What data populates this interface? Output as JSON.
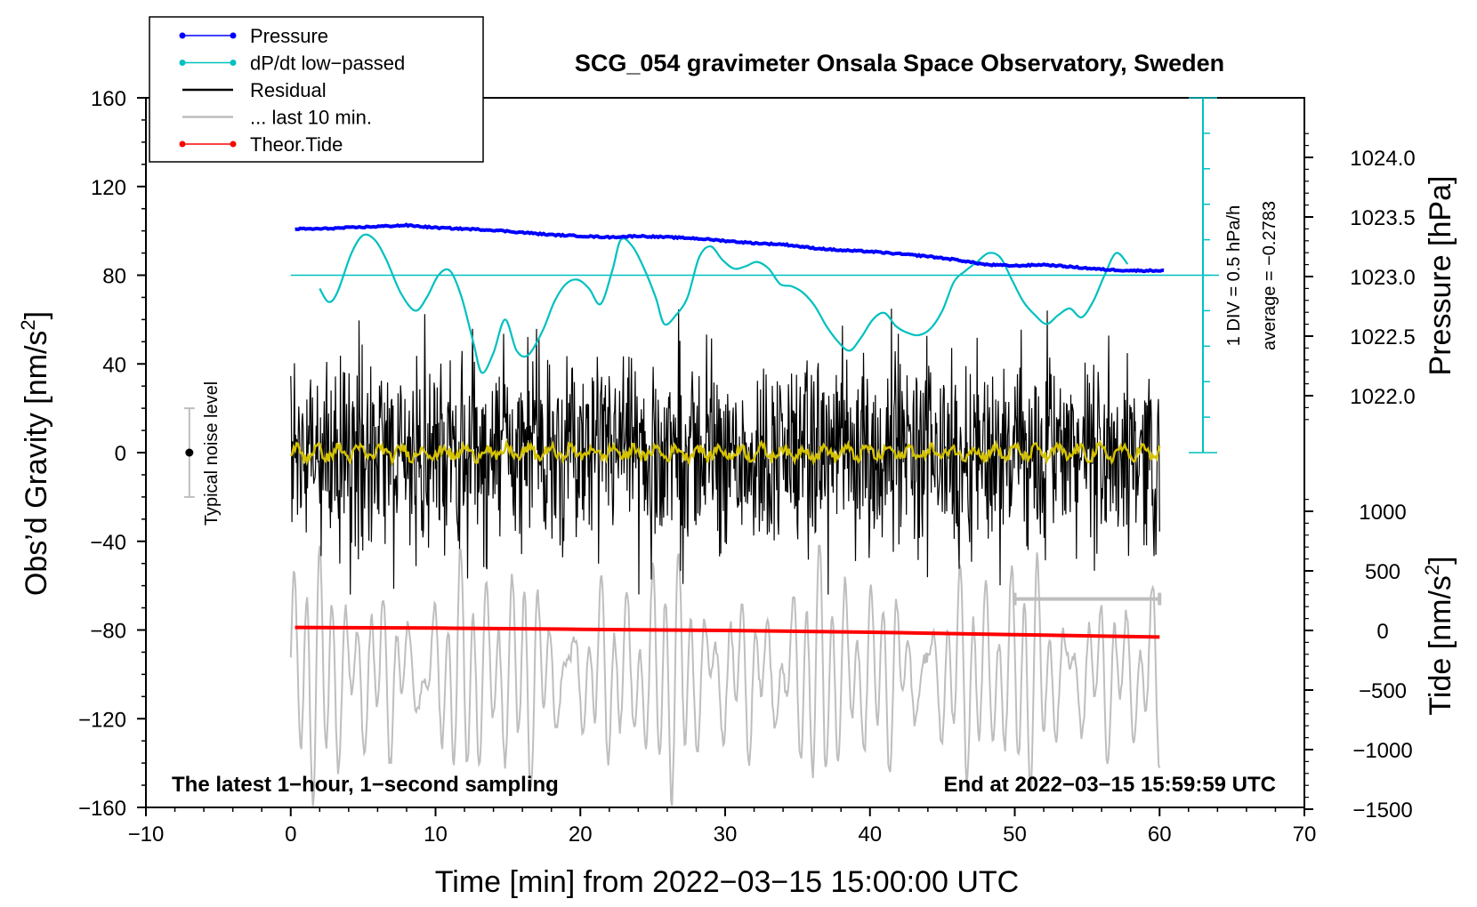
{
  "chart_data": {
    "type": "line",
    "title": "SCG_054 gravimeter Onsala Space Observatory, Sweden",
    "xlabel": "Time [min] from 2022−03−15 15:00:00 UTC",
    "ylabel": "Obs’d Gravity [nm/s²]",
    "ylabel_parts": {
      "main": "Obs’d Gravity [nm/s",
      "sup": "2",
      "close": "]"
    },
    "right_pressure_label": "Pressure [hPa]",
    "right_tide_label": "Tide [nm/s²]",
    "right_tide_label_parts": {
      "main": "Tide [nm/s",
      "sup": "2",
      "close": "]"
    },
    "xlim": [
      -10,
      70
    ],
    "ylim": [
      -160,
      160
    ],
    "x_ticks": [
      -10,
      0,
      10,
      20,
      30,
      40,
      50,
      60,
      70
    ],
    "x_tick_labels": [
      "−10",
      "0",
      "10",
      "20",
      "30",
      "40",
      "50",
      "60",
      "70"
    ],
    "y_ticks": [
      -160,
      -120,
      -80,
      -40,
      0,
      40,
      80,
      120,
      160
    ],
    "y_tick_labels": [
      "−160",
      "−120",
      "−80",
      "−40",
      "0",
      "40",
      "80",
      "120",
      "160"
    ],
    "pressure_ticks": [
      1022.0,
      1022.5,
      1023.0,
      1023.5,
      1024.0
    ],
    "pressure_tick_labels": [
      "1022.0",
      "1022.5",
      "1023.0",
      "1023.5",
      "1024.0"
    ],
    "tide_ticks": [
      -1500,
      -1000,
      -500,
      0,
      500,
      1000
    ],
    "tide_tick_labels": [
      "−1500",
      "−1000",
      "−500",
      "0",
      "500",
      "1000"
    ],
    "legend": [
      {
        "label": "Pressure",
        "color": "#0000ff",
        "marker": true
      },
      {
        "label": "dP/dt low−passed",
        "color": "#00c0c0",
        "marker": true
      },
      {
        "label": "Residual",
        "color": "#000000",
        "marker": false
      },
      {
        "label": "... last 10 min.",
        "color": "#bebebe",
        "marker": false
      },
      {
        "label": "Theor.Tide",
        "color": "#ff0000",
        "marker": true
      }
    ],
    "noise_level_label": "Typical noise level",
    "noise_level": {
      "x": -7,
      "y": 0,
      "range": [
        -20,
        20
      ]
    },
    "dpdt_scale_label": "1 DIV = 0.5 hPa/h",
    "dpdt_average_label": "average = −0.2783",
    "dpdt_reference_y": 80,
    "note_left": "The latest 1−hour, 1−second sampling",
    "note_right": "End at 2022−03−15 15:59:59 UTC",
    "series": [
      {
        "name": "Pressure",
        "color": "#0000ff",
        "units": "hPa",
        "x": [
          0,
          2,
          4,
          6,
          8,
          10,
          12,
          14,
          16,
          18,
          20,
          22,
          24,
          26,
          28,
          30,
          32,
          34,
          36,
          38,
          40,
          42,
          44,
          46,
          48,
          50,
          52,
          54,
          56,
          58,
          60
        ],
        "values": [
          1023.4,
          1023.4,
          1023.41,
          1023.42,
          1023.43,
          1023.41,
          1023.4,
          1023.39,
          1023.37,
          1023.35,
          1023.34,
          1023.33,
          1023.34,
          1023.33,
          1023.32,
          1023.3,
          1023.28,
          1023.27,
          1023.24,
          1023.22,
          1023.21,
          1023.19,
          1023.17,
          1023.14,
          1023.1,
          1023.09,
          1023.1,
          1023.08,
          1023.06,
          1023.05,
          1023.05
        ]
      },
      {
        "name": "dP/dt low−passed",
        "color": "#00c0c0",
        "units": "nm/s² plot scale",
        "x": [
          2,
          2.6,
          3.2,
          4.2,
          5.0,
          5.8,
          6.6,
          7.6,
          8.6,
          9.4,
          10.2,
          11.0,
          11.8,
          12.6,
          13.2,
          14.0,
          14.8,
          15.6,
          16.4,
          17.4,
          18.2,
          19.0,
          19.8,
          20.6,
          21.4,
          22.2,
          22.8,
          23.6,
          24.4,
          25.2,
          25.8,
          26.6,
          27.4,
          28.2,
          29.0,
          29.8,
          30.6,
          31.4,
          32.2,
          33.0,
          33.8,
          34.6,
          35.4,
          36.2,
          37.0,
          37.8,
          38.6,
          39.4,
          40.2,
          41.0,
          41.8,
          42.6,
          43.4,
          44.2,
          45.0,
          45.8,
          46.6,
          47.4,
          48.2,
          49.0,
          49.8,
          50.6,
          51.4,
          52.2,
          53.0,
          53.8,
          54.6,
          55.4,
          56.2,
          57.0,
          57.8
        ],
        "values": [
          74,
          68,
          72,
          90,
          98,
          96,
          87,
          72,
          64,
          70,
          80,
          82,
          70,
          50,
          36,
          45,
          60,
          46,
          44,
          55,
          68,
          76,
          78,
          74,
          67,
          82,
          96,
          93,
          83,
          70,
          58,
          62,
          70,
          88,
          93,
          87,
          83,
          84,
          86,
          83,
          76,
          75,
          72,
          66,
          57,
          50,
          46,
          52,
          60,
          63,
          57,
          54,
          53,
          56,
          64,
          77,
          82,
          86,
          90,
          88,
          78,
          68,
          62,
          58,
          62,
          65,
          61,
          68,
          80,
          90,
          85
        ]
      },
      {
        "name": "Residual",
        "color": "#000000",
        "units": "nm/s²",
        "x_range": [
          0,
          60
        ],
        "typical_amplitude": 25,
        "peak_range": [
          -64,
          66
        ]
      },
      {
        "name": "Residual low−passed",
        "color": "#d4c200",
        "units": "nm/s²",
        "x_range": [
          0,
          60
        ],
        "typical_amplitude": 4
      },
      {
        "name": "... last 10 min.",
        "color": "#bebebe",
        "units": "nm/s² (shifted)",
        "x_range": [
          0,
          60
        ],
        "center": -100,
        "peak_range": [
          -168,
          -42
        ]
      },
      {
        "name": "Theor.Tide",
        "color": "#ff0000",
        "units": "nm/s² (tide)",
        "x": [
          0,
          10,
          20,
          30,
          40,
          50,
          60
        ],
        "values": [
          25,
          20,
          10,
          0,
          -15,
          -35,
          -55
        ]
      }
    ],
    "last_10_min_bracket": {
      "x": [
        50,
        60
      ],
      "y": -66
    }
  }
}
